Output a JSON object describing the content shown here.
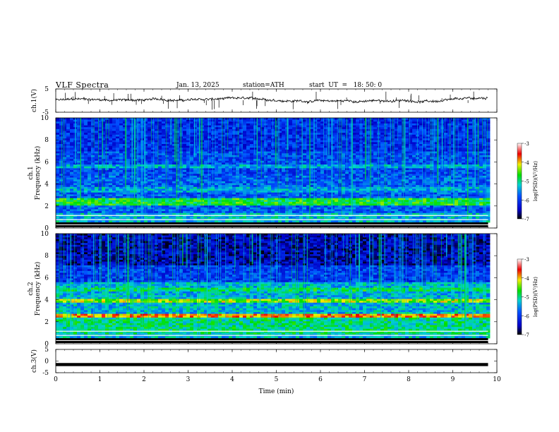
{
  "header": {
    "title": "VLF  Spectra",
    "date": "Jan. 13, 2025",
    "station": "station=ATH",
    "start_ut": "start  UT  =   18: 50: 0"
  },
  "chart_data": [
    {
      "type": "line",
      "name": "ch1-waveform",
      "ylabel": "ch.1(V)",
      "ylim": [
        -5,
        5
      ],
      "yticks": [
        "5",
        "-5"
      ],
      "xlim": [
        0,
        10
      ],
      "x_end": 9.8,
      "baseline": 0
    },
    {
      "type": "heatmap",
      "name": "ch1-spectrogram",
      "ylabel": "ch.1\nFrequency (kHz)",
      "ylim": [
        0,
        10
      ],
      "yticks": [
        "0",
        "2",
        "4",
        "6",
        "8",
        "10"
      ],
      "xlim": [
        0,
        10
      ],
      "x_end": 9.8,
      "colorbar": {
        "label": "log(PSD)(V²/Hz)",
        "range": [
          -7,
          -3
        ],
        "ticks": [
          "-3",
          "-4",
          "-5",
          "-6",
          "-7"
        ]
      }
    },
    {
      "type": "heatmap",
      "name": "ch2-spectrogram",
      "ylabel": "ch.2\nFrequency (kHz)",
      "ylim": [
        0,
        10
      ],
      "yticks": [
        "0",
        "2",
        "4",
        "6",
        "8",
        "10"
      ],
      "xlim": [
        0,
        10
      ],
      "x_end": 9.8,
      "colorbar": {
        "label": "log(PSD)(V²/Hz)",
        "range": [
          -7,
          -3
        ],
        "ticks": [
          "-3",
          "-4",
          "-5",
          "-6",
          "-7"
        ]
      }
    },
    {
      "type": "line",
      "name": "ch3-waveform",
      "ylabel": "ch.3(V)",
      "ylim": [
        -5,
        5
      ],
      "yticks": [
        "5",
        "0",
        "-5"
      ],
      "xlim": [
        0,
        10
      ],
      "x_end": 9.8,
      "baseline": -1.5
    }
  ],
  "xaxis": {
    "label": "Time  (min)",
    "ticks": [
      "0",
      "1",
      "2",
      "3",
      "4",
      "5",
      "6",
      "7",
      "8",
      "9",
      "10"
    ]
  }
}
